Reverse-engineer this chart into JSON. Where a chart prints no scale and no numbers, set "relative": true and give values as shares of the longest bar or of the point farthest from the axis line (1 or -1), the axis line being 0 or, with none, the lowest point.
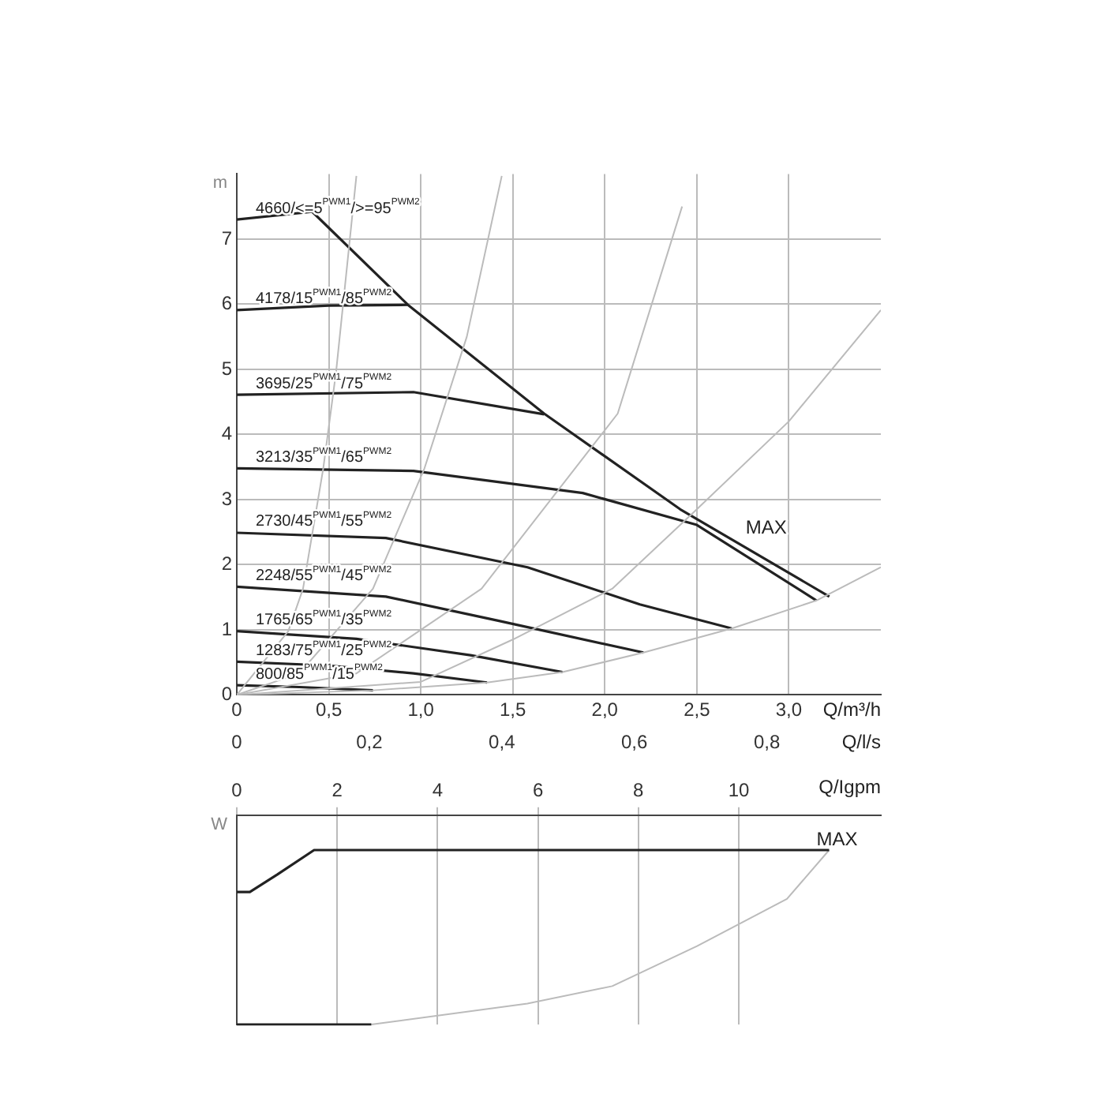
{
  "chart_data": [
    {
      "type": "line",
      "ylabel": "m",
      "xlabel": "Q/m³/h",
      "x2label": "Q/l/s",
      "xlim": [
        0,
        3.5
      ],
      "xticks": [
        0,
        {
          "value": 0.5,
          "label": "0,5"
        },
        {
          "value": 1,
          "label": "1,0"
        },
        {
          "value": 1.5,
          "label": "1,5"
        },
        {
          "value": 2,
          "label": "2,0"
        },
        {
          "value": 2.5,
          "label": "2,5"
        },
        {
          "value": 3,
          "label": "3,0"
        }
      ],
      "x2lim": [
        0,
        0.972
      ],
      "x2ticks": [
        0,
        {
          "value": 0.2,
          "label": "0,2"
        },
        {
          "value": 0.4,
          "label": "0,4"
        },
        {
          "value": 0.6,
          "label": "0,6"
        },
        {
          "value": 0.8,
          "label": "0,8"
        }
      ],
      "ylim": [
        0,
        8
      ],
      "yticks": [
        0,
        1,
        2,
        3,
        4,
        5,
        6,
        7
      ],
      "grid": true,
      "legend": false,
      "marker": "none",
      "line_style": "solid",
      "series": [
        {
          "color": "#bbbbbb",
          "x": [
            0,
            0.28,
            0.36,
            0.47,
            0.54,
            0.65
          ],
          "values": [
            0,
            0.98,
            1.63,
            3.48,
            4.97,
            7.97
          ]
        },
        {
          "color": "#bbbbbb",
          "x": [
            0,
            0.34,
            0.74,
            1.02,
            1.25,
            1.44
          ],
          "values": [
            0,
            0.33,
            1.63,
            3.48,
            5.5,
            7.97
          ]
        },
        {
          "color": "#bbbbbb",
          "x": [
            0,
            0.65,
            1.33,
            2.07,
            2.42
          ],
          "values": [
            0,
            0.33,
            1.63,
            4.32,
            7.5
          ]
        },
        {
          "color": "#bbbbbb",
          "x": [
            0,
            1.0,
            1.5,
            2.04,
            2.5,
            3.0,
            3.5
          ],
          "values": [
            0,
            0.2,
            0.85,
            1.63,
            2.85,
            4.2,
            5.91
          ]
        },
        {
          "color": "#bbbbbb",
          "x": [
            0,
            0.74,
            1.36,
            1.77,
            2.21,
            2.69,
            3.15,
            3.5
          ],
          "values": [
            0,
            0.07,
            0.19,
            0.35,
            0.65,
            1.02,
            1.45,
            1.96
          ]
        },
        {
          "name": "4660/<=5$^{PWM1}$/>=95$^{PWM2}$",
          "color": "#222222",
          "x": [
            0,
            0.41,
            0.93,
            1.67,
            2.41,
            3.22
          ],
          "values": [
            7.3,
            7.42,
            5.99,
            4.32,
            2.85,
            1.51
          ]
        },
        {
          "name": "4178/15$^{PWM1}$/85$^{PWM2}$",
          "color": "#222222",
          "x": [
            0,
            0.5,
            0.93
          ],
          "values": [
            5.91,
            5.98,
            5.99
          ]
        },
        {
          "name": "3695/25$^{PWM1}$/75$^{PWM2}$",
          "color": "#222222",
          "x": [
            0,
            0.96,
            1.67
          ],
          "values": [
            4.61,
            4.65,
            4.31
          ]
        },
        {
          "name": "3213/35$^{PWM1}$/65$^{PWM2}$",
          "color": "#222222",
          "x": [
            0,
            0.96,
            1.88,
            2.5,
            3.15
          ],
          "values": [
            3.48,
            3.44,
            3.1,
            2.61,
            1.45
          ]
        },
        {
          "name": "2730/45$^{PWM1}$/55$^{PWM2}$",
          "color": "#222222",
          "x": [
            0,
            0.81,
            1.58,
            2.19,
            2.69
          ],
          "values": [
            2.49,
            2.41,
            1.96,
            1.39,
            1.02
          ]
        },
        {
          "name": "2248/55$^{PWM1}$/45$^{PWM2}$",
          "color": "#222222",
          "x": [
            0,
            0.81,
            1.42,
            2.21
          ],
          "values": [
            1.66,
            1.51,
            1.14,
            0.65
          ]
        },
        {
          "name": "1765/65$^{PWM1}$/35$^{PWM2}$",
          "color": "#222222",
          "x": [
            0,
            0.65,
            1.27,
            1.77
          ],
          "values": [
            0.98,
            0.86,
            0.61,
            0.35
          ]
        },
        {
          "name": "1283/75$^{PWM1}$/25$^{PWM2}$",
          "color": "#222222",
          "x": [
            0,
            0.5,
            0.96,
            1.36
          ],
          "values": [
            0.51,
            0.45,
            0.33,
            0.19
          ]
        },
        {
          "name": "800/85$^{PWM1}$/15$^{PWM2}$",
          "color": "#222222",
          "x": [
            0,
            0.34,
            0.74
          ],
          "values": [
            0.15,
            0.12,
            0.07
          ]
        }
      ],
      "annotations": [
        "MAX"
      ]
    },
    {
      "type": "line",
      "ylabel": "W",
      "relative": true,
      "xlabel": "Q/Igpm",
      "xlim": [
        0,
        12.83
      ],
      "xticks": [
        0,
        2,
        4,
        6,
        8,
        10
      ],
      "grid": "x",
      "legend": false,
      "marker": "none",
      "line_style": "solid",
      "series": [
        {
          "color": "#222222",
          "x": [
            0,
            0.26,
            0.81,
            1.54,
            11.8
          ],
          "values": [
            0.76,
            0.76,
            0.86,
            1.0,
            1.0
          ]
        },
        {
          "color": "#222222",
          "x": [
            0,
            2.68
          ],
          "values": [
            0,
            0
          ]
        },
        {
          "color": "#bbbbbb",
          "x": [
            2.68,
            5.79,
            7.48,
            9.17,
            10.96,
            11.8
          ],
          "values": [
            0,
            0.12,
            0.22,
            0.45,
            0.72,
            1.0
          ]
        }
      ],
      "annotations": [
        "MAX"
      ]
    }
  ]
}
